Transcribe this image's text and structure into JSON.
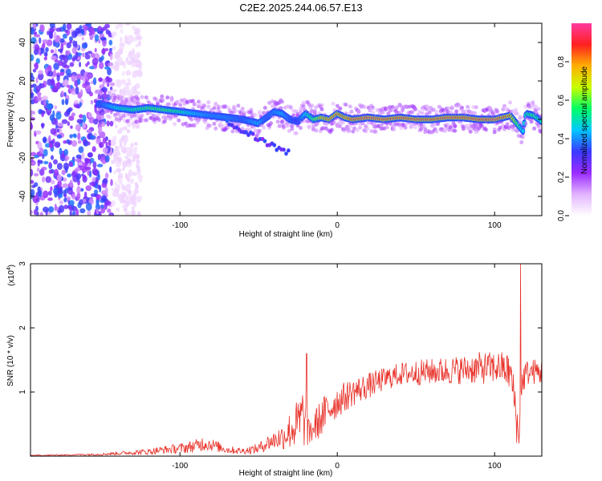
{
  "title": "C2E2.2025.244.06.57.E13",
  "chart_data": [
    {
      "type": "heatmap",
      "name": "spectrogram",
      "xlabel": "Height of straight line (km)",
      "ylabel": "Frequency (Hz)",
      "xlim": [
        -195,
        130
      ],
      "ylim": [
        -50,
        50
      ],
      "xticks": [
        -100,
        0,
        100
      ],
      "xtick_labels": [
        "-100",
        "0",
        "100"
      ],
      "yticks": [
        -40,
        -20,
        0,
        20,
        40
      ],
      "ytick_labels": [
        "-40",
        "-20",
        "0",
        "20",
        "40"
      ],
      "colorbar": {
        "label": "Normalized spectral amplitude",
        "range": [
          0,
          1
        ],
        "ticks": [
          0.0,
          0.2,
          0.4,
          0.6,
          0.8
        ],
        "tick_labels": [
          "0.0",
          "0.2",
          "0.4",
          "0.6",
          "0.8"
        ],
        "colors": [
          "#ffffff",
          "#e2b4ff",
          "#9a2bff",
          "#3a3aff",
          "#00c8ff",
          "#00ff66",
          "#c8ff00",
          "#ffb000",
          "#ff2020",
          "#ff3aa0"
        ]
      },
      "ridge": {
        "x": [
          -150,
          -140,
          -130,
          -120,
          -110,
          -100,
          -90,
          -80,
          -70,
          -60,
          -50,
          -45,
          -40,
          -35,
          -30,
          -25,
          -20,
          -15,
          -10,
          -5,
          0,
          5,
          10,
          20,
          30,
          40,
          50,
          60,
          70,
          80,
          90,
          100,
          105,
          110,
          115,
          118,
          120,
          125,
          130
        ],
        "y": [
          8,
          6,
          5,
          6,
          5,
          4,
          3,
          2,
          1,
          0,
          -2,
          1,
          4,
          3,
          0,
          -1,
          3,
          0,
          1,
          0,
          3,
          1,
          0,
          1,
          0,
          1,
          0,
          0,
          1,
          1,
          0,
          0,
          1,
          2,
          -3,
          -6,
          3,
          2,
          -1
        ],
        "amplitude": [
          0.35,
          0.5,
          0.55,
          0.6,
          0.6,
          0.55,
          0.45,
          0.4,
          0.4,
          0.35,
          0.45,
          0.35,
          0.4,
          0.45,
          0.35,
          0.3,
          0.5,
          0.6,
          0.8,
          0.85,
          0.85,
          0.85,
          0.9,
          0.95,
          0.9,
          0.92,
          0.9,
          0.9,
          0.92,
          0.9,
          0.92,
          0.95,
          0.9,
          0.85,
          0.6,
          0.45,
          0.55,
          0.6,
          0.5
        ]
      },
      "noise_region_x": [
        -195,
        -133
      ]
    },
    {
      "type": "line",
      "name": "snr",
      "xlabel": "Height of straight line (km)",
      "ylabel": "SNR (10 * v/v)",
      "multiplier": "(x10",
      "multiplier_exp": "4",
      "multiplier_close": ")",
      "xlim": [
        -195,
        130
      ],
      "ylim": [
        0,
        3
      ],
      "xticks": [
        -100,
        0,
        100
      ],
      "xtick_labels": [
        "-100",
        "0",
        "100"
      ],
      "yticks": [
        1,
        2,
        3
      ],
      "ytick_labels": [
        "1",
        "2",
        "3"
      ],
      "color": "#e8322a",
      "series_envelope": {
        "x": [
          -195,
          -170,
          -150,
          -135,
          -120,
          -110,
          -100,
          -95,
          -90,
          -85,
          -80,
          -70,
          -60,
          -50,
          -45,
          -40,
          -35,
          -30,
          -25,
          -22,
          -20,
          -18,
          -15,
          -10,
          -5,
          0,
          10,
          20,
          30,
          40,
          50,
          60,
          70,
          80,
          90,
          100,
          105,
          110,
          112,
          114,
          115,
          116,
          118,
          120,
          125,
          130
        ],
        "mean": [
          0.01,
          0.02,
          0.03,
          0.05,
          0.07,
          0.1,
          0.12,
          0.14,
          0.16,
          0.2,
          0.18,
          0.1,
          0.08,
          0.12,
          0.2,
          0.25,
          0.3,
          0.4,
          0.5,
          0.6,
          0.5,
          0.35,
          0.45,
          0.6,
          0.75,
          0.85,
          1.0,
          1.1,
          1.2,
          1.28,
          1.3,
          1.32,
          1.33,
          1.35,
          1.37,
          1.38,
          1.38,
          1.3,
          1.0,
          0.6,
          0.3,
          0.7,
          1.2,
          1.3,
          1.32,
          1.3
        ],
        "spread": [
          0.01,
          0.01,
          0.02,
          0.03,
          0.05,
          0.06,
          0.08,
          0.09,
          0.1,
          0.12,
          0.1,
          0.06,
          0.05,
          0.08,
          0.12,
          0.15,
          0.2,
          0.3,
          0.4,
          0.5,
          0.35,
          0.2,
          0.25,
          0.3,
          0.3,
          0.25,
          0.22,
          0.2,
          0.18,
          0.18,
          0.2,
          0.2,
          0.22,
          0.22,
          0.25,
          0.25,
          0.25,
          0.3,
          0.3,
          0.4,
          0.2,
          0.5,
          0.25,
          0.2,
          0.2,
          0.2
        ]
      },
      "peaks": [
        {
          "x": -19.5,
          "y": 1.6
        },
        {
          "x": 116.5,
          "y": 3.0
        },
        {
          "x": 115.3,
          "y": 0.2
        }
      ]
    }
  ]
}
